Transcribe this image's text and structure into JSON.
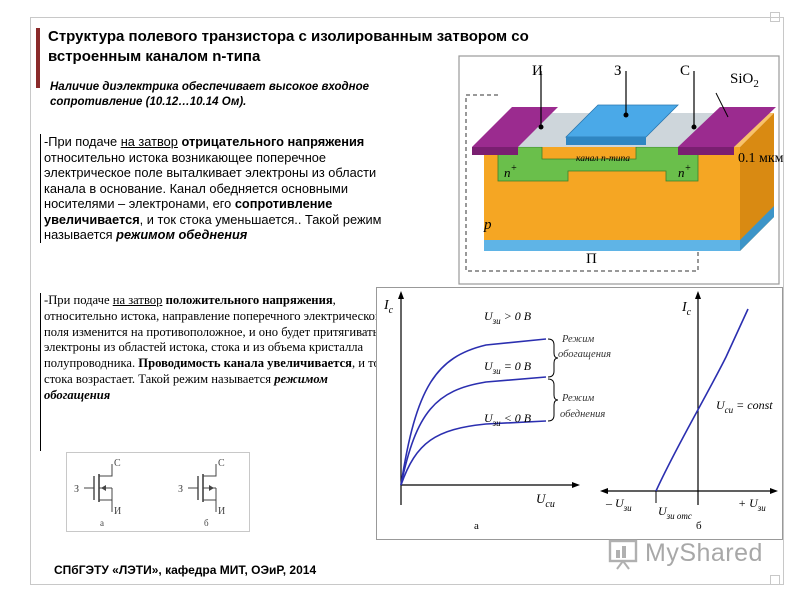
{
  "slide": {
    "title": "Структура полевого транзистора с изолированным затвором со встроенным каналом n-типа",
    "subtitle": "Наличие диэлектрика обеспечивает высокое входное сопротивление (10.12…10.14 Ом).",
    "para1": {
      "s1": "-При подаче ",
      "s2": "на затвор",
      "s3": " ",
      "s4": "отрицательного напряжения",
      "s5": " относительно истока возникающее поперечное электрическое поле выталкивает электроны из области канала в основание. Канал обедняется основными носителями – электронами, его ",
      "s6": "сопротивление увеличивается",
      "s7": ", и ток стока уменьшается.. Такой режим называется ",
      "s8": "режимом обеднения"
    },
    "para2": {
      "s1": "-При подаче ",
      "s2": "на затвор",
      "s3": " ",
      "s4": "положительного напряжения",
      "s5": ", относительно истока, направление поперечного электрического поля изменится на противоположное, и оно будет притягивать электроны из областей истока, стока и из объема кристалла полупроводника. ",
      "s6": "Проводимость канала увеличивается",
      "s7": ", и ток стока возрастает. Такой режим называется ",
      "s8": "режимом обогащения"
    },
    "footer": "СПбГЭТУ «ЛЭТИ», кафедра МИТ, ОЭиР, 2014"
  },
  "structure": {
    "label_source": "И",
    "label_gate": "З",
    "label_drain": "С",
    "label_oxide": "SiO",
    "label_oxide_sub": "2",
    "label_channel": "канал n-типа",
    "label_n": "n",
    "label_plus": "+",
    "label_p": "p",
    "label_substrate": "П",
    "label_thickness": "0.1 мкм"
  },
  "symbols": {
    "drain": "С",
    "gate": "З",
    "source": "И",
    "caption_a": "а",
    "caption_b": "б"
  },
  "graph": {
    "ic": "I",
    "ic_sub": "с",
    "ucn": "U",
    "ucn_sub": "си",
    "curve_top": "U",
    "curve_top_sub": "зи",
    "curve_top_rest": " > 0 В",
    "curve_mid": "U",
    "curve_mid_sub": "зи",
    "curve_mid_rest": " = 0 В",
    "curve_bot": "U",
    "curve_bot_sub": "зи",
    "curve_bot_rest": " < 0 В",
    "mode_enrich_1": "Режим",
    "mode_enrich_2": "обогащения",
    "mode_deplete_1": "Режим",
    "mode_deplete_2": "обеднения",
    "caption_a": "а",
    "neg_u": "– U",
    "neg_u_sub": "зи",
    "pos_u": "+ U",
    "pos_u_sub": "зи",
    "ucn_const": "U",
    "ucn_const_sub": "си",
    "ucn_const_rest": " = const",
    "u_off": "U",
    "u_off_sub": "зи отс",
    "caption_b": "б"
  },
  "logo": {
    "text": "MyShared"
  }
}
